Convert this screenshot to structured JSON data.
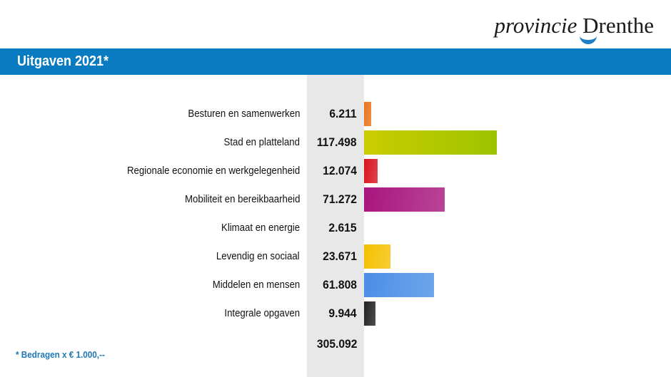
{
  "logo": {
    "text_part1": "provincie",
    "text_part2": "Drenthe"
  },
  "header": {
    "title": "Uitgaven 2021*"
  },
  "chart_data": {
    "type": "bar",
    "orientation": "horizontal",
    "title": "Uitgaven 2021*",
    "categories": [
      "Besturen en samenwerken",
      "Stad en platteland",
      "Regionale economie en werkgelegenheid",
      "Mobiliteit en bereikbaarheid",
      "Klimaat en energie",
      "Levendig en sociaal",
      "Middelen en mensen",
      "Integrale opgaven"
    ],
    "values": [
      6211,
      117498,
      12074,
      71272,
      2615,
      23671,
      61808,
      9944
    ],
    "value_labels": [
      "6.211",
      "117.498",
      "12.074",
      "71.272",
      "2.615",
      "23.671",
      "61.808",
      "9.944"
    ],
    "colors": [
      "#e8731c",
      "#b4c800",
      "#d8141f",
      "#a8157e",
      "transparent",
      "#f5c000",
      "#4a8ee6",
      "#222222"
    ],
    "total_label": "305.092",
    "unit_note": "* Bedragen x € 1.000,--",
    "grid": false
  }
}
